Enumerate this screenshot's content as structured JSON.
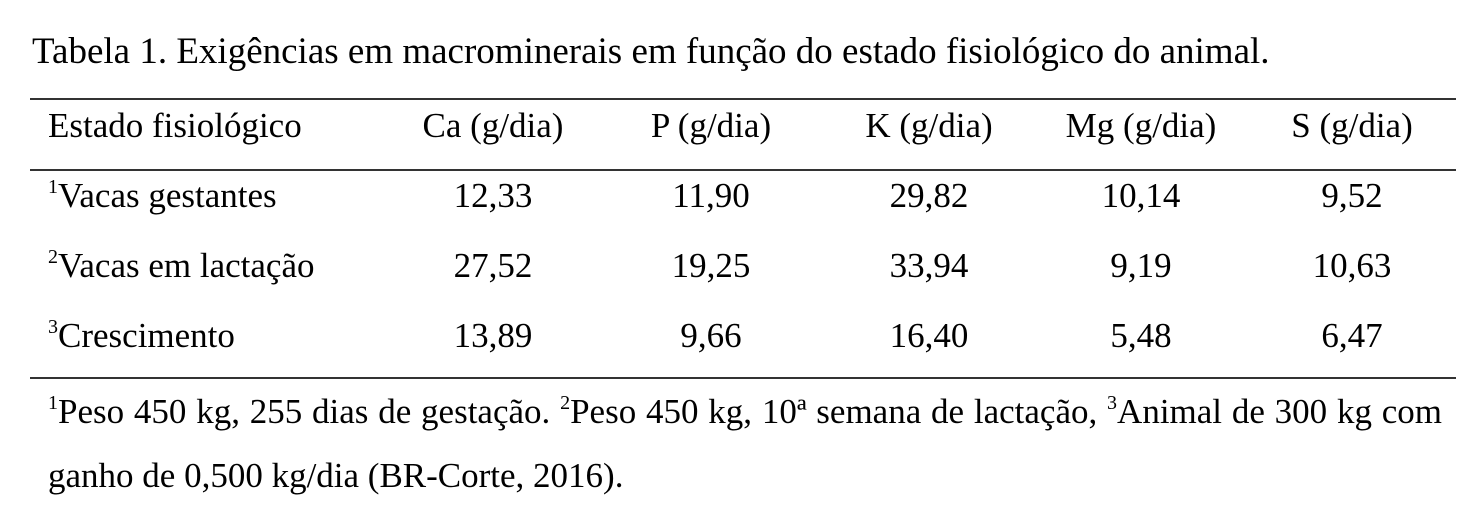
{
  "title": "Tabela 1. Exigências em macrominerais em função do estado fisiológico do animal.",
  "table": {
    "header": [
      "Estado fisiológico",
      "Ca (g/dia)",
      "P (g/dia)",
      "K (g/dia)",
      "Mg (g/dia)",
      "S (g/dia)"
    ],
    "rows": [
      {
        "mark": "1",
        "label": "Vacas gestantes",
        "cells": [
          "12,33",
          "11,90",
          "29,82",
          "10,14",
          "9,52"
        ]
      },
      {
        "mark": "2",
        "label": "Vacas em lactação",
        "cells": [
          "27,52",
          "19,25",
          "33,94",
          "9,19",
          "10,63"
        ]
      },
      {
        "mark": "3",
        "label": "Crescimento",
        "cells": [
          "13,89",
          "9,66",
          "16,40",
          "5,48",
          "6,47"
        ]
      }
    ]
  },
  "notes": [
    {
      "mark": "1",
      "text": "Peso 450 kg, 255 dias de gestação."
    },
    {
      "mark": "2",
      "text": "Peso 450 kg, 10ª semana de lactação,"
    },
    {
      "mark": "3",
      "text": "Animal de 300 kg com ganho de 0,500 kg/dia (BR-Corte, 2016)."
    }
  ]
}
